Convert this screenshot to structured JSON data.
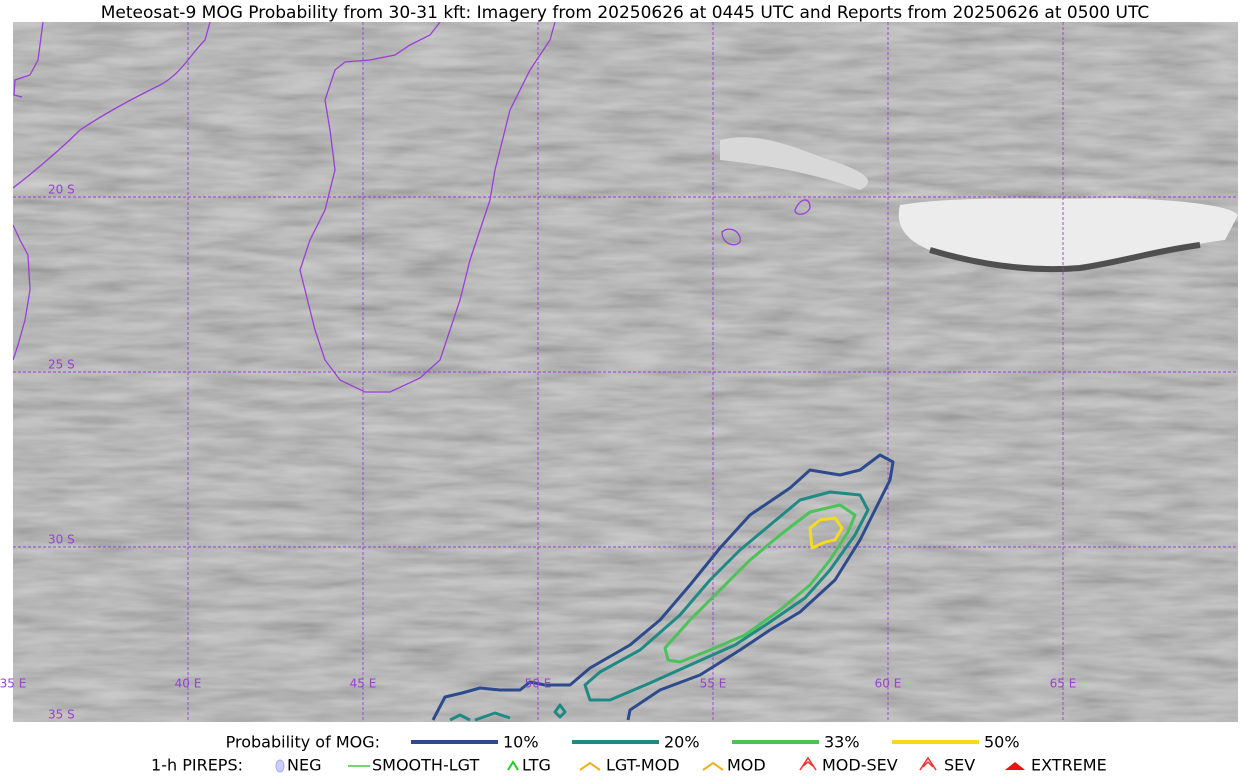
{
  "title": "Meteosat-9 MOG Probability from 30-31 kft: Imagery from 20250626 at 0445 UTC and Reports from 20250626 at 0500 UTC",
  "grid_labels": {
    "latitudes": [
      "20 S",
      "25 S",
      "30 S",
      "35 S"
    ],
    "longitudes": [
      "35 E",
      "40 E",
      "45 E",
      "50 E",
      "55 E",
      "60 E",
      "65 E"
    ]
  },
  "legend": {
    "probability": {
      "label": "Probability of MOG:",
      "items": [
        {
          "label": "10%",
          "color": "#2d4b8c"
        },
        {
          "label": "20%",
          "color": "#1f8a84"
        },
        {
          "label": "33%",
          "color": "#4cc25a"
        },
        {
          "label": "50%",
          "color": "#f5dc1a"
        }
      ]
    },
    "pireps": {
      "label": "1-h PIREPS:",
      "items": [
        "NEG",
        "SMOOTH-LGT",
        "LTG",
        "LGT-MOD",
        "MOD",
        "MOD-SEV",
        "SEV",
        "EXTREME"
      ]
    }
  }
}
